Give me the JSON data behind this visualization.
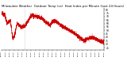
{
  "title": "Milwaukee Weather  Outdoor Temp (vs)  Heat Index per Minute (Last 24 Hours)",
  "title_fontsize": 2.8,
  "line_color": "#cc0000",
  "background_color": "#ffffff",
  "y_min": 22,
  "y_max": 82,
  "n_points": 1440,
  "vline_x": 330,
  "ytick_fontsize": 2.2,
  "xtick_fontsize": 1.7,
  "yticks": [
    25,
    30,
    35,
    40,
    45,
    50,
    55,
    60,
    65,
    70,
    75,
    80
  ]
}
